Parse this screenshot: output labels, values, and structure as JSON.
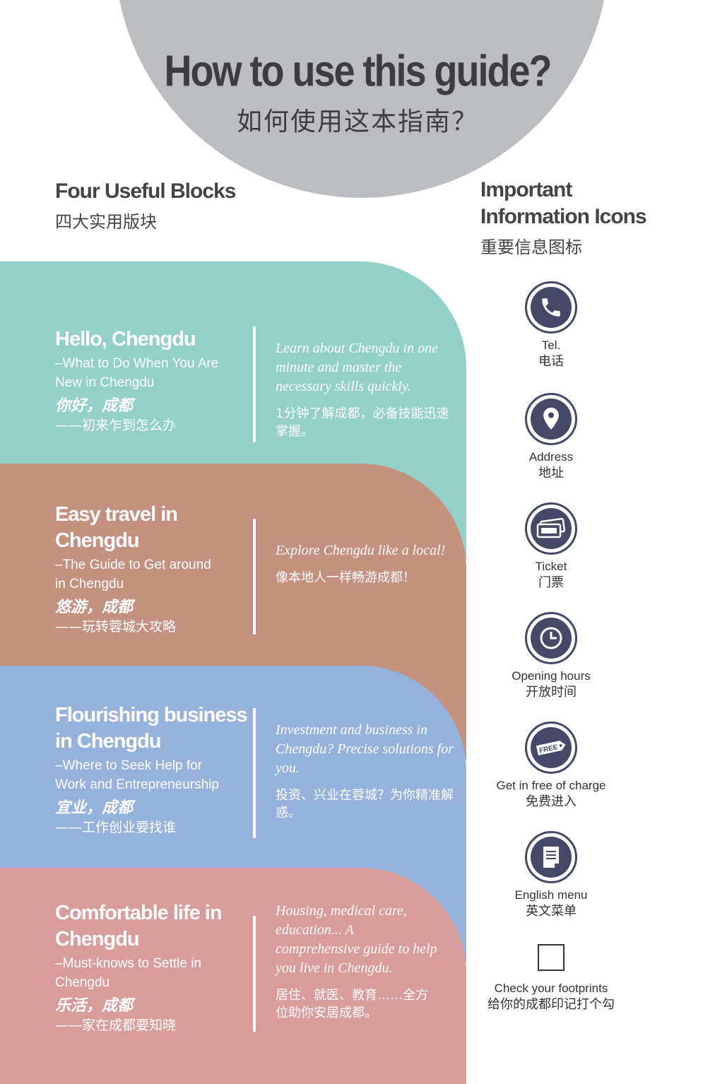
{
  "header": {
    "title_en": "How to use this guide?",
    "title_zh": "如何使用这本指南？"
  },
  "left_heading": {
    "en": "Four Useful Blocks",
    "zh": "四大实用版块"
  },
  "right_heading": {
    "en_line1": "Important",
    "en_line2": "Information Icons",
    "zh": "重要信息图标"
  },
  "blocks": [
    {
      "title_lines": [
        "Hello, Chengdu"
      ],
      "sub_lines": [
        "–What to Do When You Are",
        "New in Chengdu"
      ],
      "zh_title": "你好，成都",
      "zh_sub": "——初来乍到怎么办",
      "desc_en": "Learn about Chengdu in one minute and master the necessary skills quickly.",
      "desc_zh": "1分钟了解成都，必备技能迅速掌握。",
      "color": "#93d1c8"
    },
    {
      "title_lines": [
        "Easy travel in",
        "Chengdu"
      ],
      "sub_lines": [
        "–The Guide to Get around",
        "in Chengdu"
      ],
      "zh_title": "悠游，成都",
      "zh_sub": "——玩转蓉城大攻略",
      "desc_en": "Explore Chengdu like a local!",
      "desc_zh": "像本地人一样畅游成都！",
      "color": "#c4917e"
    },
    {
      "title_lines": [
        "Flourishing business",
        "in Chengdu"
      ],
      "sub_lines": [
        "–Where to Seek Help for",
        "Work and Entrepreneurship"
      ],
      "zh_title": "宜业，成都",
      "zh_sub": "——工作创业要找谁",
      "desc_en": "Investment and business in Chengdu? Precise solutions for you.",
      "desc_zh": "投资、兴业在蓉城？为你精准解惑。",
      "color": "#94b2dc"
    },
    {
      "title_lines": [
        "Comfortable life in",
        "Chengdu"
      ],
      "sub_lines": [
        "–Must-knows to Settle in",
        "Chengdu"
      ],
      "zh_title": "乐活，成都",
      "zh_sub": "——家在成都要知晓",
      "desc_en": "Housing, medical care, education... A comprehensive guide to help you live in Chengdu.",
      "desc_zh": "居住、就医、教育……全方位助你安居成都。",
      "color": "#d89c9a"
    }
  ],
  "icons": [
    {
      "icon": "phone-icon",
      "en": "Tel.",
      "zh": "电话"
    },
    {
      "icon": "location-pin-icon",
      "en": "Address",
      "zh": "地址"
    },
    {
      "icon": "ticket-icon",
      "en": "Ticket",
      "zh": "门票"
    },
    {
      "icon": "clock-icon",
      "en": "Opening hours",
      "zh": "开放时间"
    },
    {
      "icon": "free-tag-icon",
      "en": "Get in free of charge",
      "zh": "免费进入",
      "tag_text": "FREE"
    },
    {
      "icon": "menu-document-icon",
      "en": "English menu",
      "zh": "英文菜单"
    },
    {
      "icon": "checkbox-icon",
      "en": "Check your footprints",
      "zh": "给你的成都印记打个勾"
    }
  ],
  "colors": {
    "icon_navy": "#454867",
    "header_gray": "#bcbdc0",
    "text_dark": "#3d3d3f"
  }
}
